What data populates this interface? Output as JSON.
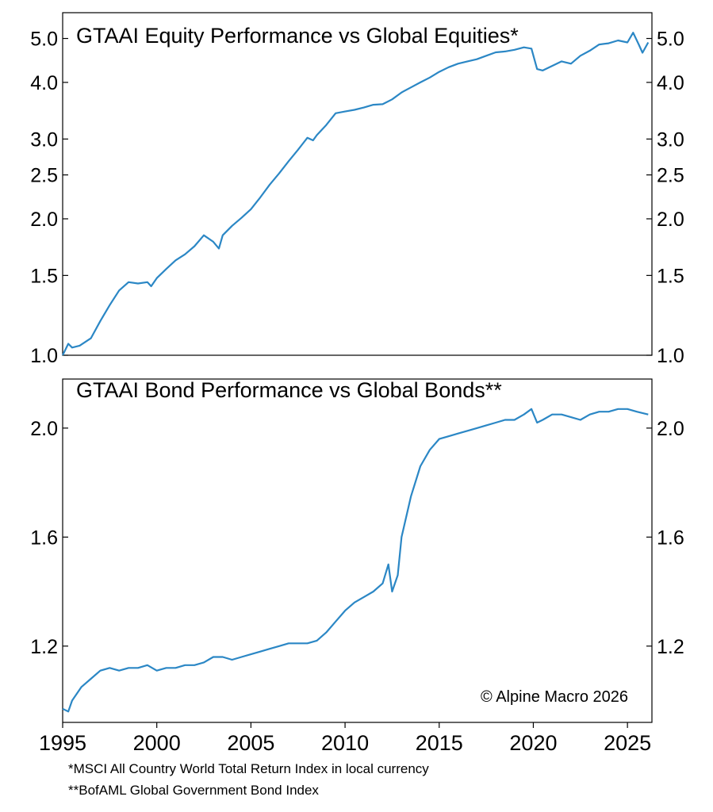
{
  "source": "© Alpine Macro 2026",
  "footnotes": [
    "*MSCI All Country World Total Return Index in local currency",
    "**BofAML Global Government Bond Index"
  ],
  "colors": {
    "line": "#2b87c5",
    "axis": "#000000",
    "background": "#ffffff"
  },
  "chart_data": [
    {
      "type": "line",
      "title": "GTAAI Equity Performance vs Global Equities*",
      "xlabel": "",
      "ylabel": "",
      "yscale": "log",
      "ylim": [
        1.0,
        5.7
      ],
      "xlim": [
        1995.0,
        2026.3
      ],
      "yticks": [
        1.0,
        1.5,
        2.0,
        2.5,
        3.0,
        4.0,
        5.0
      ],
      "ytick_labels": [
        "1.0",
        "1.5",
        "2.0",
        "2.5",
        "3.0",
        "4.0",
        "5.0"
      ],
      "tick_labels_both_sides": true,
      "grid": false,
      "series": [
        {
          "x": [
            1995.0,
            1995.3,
            1995.5,
            1995.9,
            1996.5,
            1997.0,
            1997.5,
            1998.0,
            1998.5,
            1999.0,
            1999.5,
            1999.7,
            2000.0,
            2000.5,
            2001.0,
            2001.5,
            2002.0,
            2002.5,
            2003.0,
            2003.3,
            2003.5,
            2004.0,
            2004.5,
            2005.0,
            2005.5,
            2006.0,
            2006.5,
            2007.0,
            2007.5,
            2008.0,
            2008.3,
            2008.5,
            2009.0,
            2009.5,
            2010.0,
            2010.5,
            2011.0,
            2011.5,
            2012.0,
            2012.5,
            2013.0,
            2013.5,
            2014.0,
            2014.5,
            2015.0,
            2015.5,
            2016.0,
            2016.5,
            2017.0,
            2017.5,
            2018.0,
            2018.5,
            2019.0,
            2019.5,
            2019.9,
            2020.2,
            2020.5,
            2021.0,
            2021.5,
            2022.0,
            2022.5,
            2023.0,
            2023.5,
            2024.0,
            2024.5,
            2025.0,
            2025.3,
            2025.6,
            2025.8,
            2026.1
          ],
          "values": [
            1.0,
            1.06,
            1.04,
            1.05,
            1.09,
            1.19,
            1.29,
            1.39,
            1.45,
            1.44,
            1.45,
            1.42,
            1.48,
            1.55,
            1.62,
            1.67,
            1.74,
            1.84,
            1.78,
            1.72,
            1.84,
            1.93,
            2.01,
            2.1,
            2.23,
            2.38,
            2.52,
            2.68,
            2.84,
            3.02,
            2.98,
            3.06,
            3.22,
            3.42,
            3.45,
            3.48,
            3.52,
            3.57,
            3.58,
            3.67,
            3.8,
            3.9,
            4.0,
            4.1,
            4.22,
            4.32,
            4.4,
            4.45,
            4.5,
            4.58,
            4.66,
            4.68,
            4.72,
            4.78,
            4.75,
            4.28,
            4.25,
            4.35,
            4.45,
            4.4,
            4.58,
            4.7,
            4.85,
            4.88,
            4.95,
            4.9,
            5.15,
            4.85,
            4.65,
            4.9
          ]
        }
      ]
    },
    {
      "type": "line",
      "title": "GTAAI Bond Performance vs Global Bonds**",
      "xlabel": "",
      "ylabel": "",
      "yscale": "linear",
      "ylim": [
        0.92,
        2.18
      ],
      "xlim": [
        1995.0,
        2026.3
      ],
      "yticks": [
        1.2,
        1.6,
        2.0
      ],
      "ytick_labels": [
        "1.2",
        "1.6",
        "2.0"
      ],
      "tick_labels_both_sides": true,
      "grid": false,
      "xticks": [
        1995,
        2000,
        2005,
        2010,
        2015,
        2020,
        2025
      ],
      "xtick_labels": [
        "1995",
        "2000",
        "2005",
        "2010",
        "2015",
        "2020",
        "2025"
      ],
      "series": [
        {
          "x": [
            1995.0,
            1995.3,
            1995.5,
            1996.0,
            1996.5,
            1997.0,
            1997.5,
            1998.0,
            1998.5,
            1999.0,
            1999.5,
            2000.0,
            2000.5,
            2001.0,
            2001.5,
            2002.0,
            2002.5,
            2003.0,
            2003.5,
            2004.0,
            2004.5,
            2005.0,
            2005.5,
            2006.0,
            2006.5,
            2007.0,
            2007.5,
            2008.0,
            2008.5,
            2009.0,
            2009.5,
            2010.0,
            2010.5,
            2011.0,
            2011.5,
            2012.0,
            2012.3,
            2012.5,
            2012.8,
            2013.0,
            2013.5,
            2014.0,
            2014.5,
            2015.0,
            2015.5,
            2016.0,
            2016.5,
            2017.0,
            2017.5,
            2018.0,
            2018.5,
            2019.0,
            2019.5,
            2019.9,
            2020.2,
            2020.5,
            2021.0,
            2021.5,
            2022.0,
            2022.5,
            2023.0,
            2023.5,
            2024.0,
            2024.5,
            2025.0,
            2025.5,
            2026.1
          ],
          "values": [
            0.97,
            0.96,
            1.0,
            1.05,
            1.08,
            1.11,
            1.12,
            1.11,
            1.12,
            1.12,
            1.13,
            1.11,
            1.12,
            1.12,
            1.13,
            1.13,
            1.14,
            1.16,
            1.16,
            1.15,
            1.16,
            1.17,
            1.18,
            1.19,
            1.2,
            1.21,
            1.21,
            1.21,
            1.22,
            1.25,
            1.29,
            1.33,
            1.36,
            1.38,
            1.4,
            1.43,
            1.5,
            1.4,
            1.46,
            1.6,
            1.75,
            1.86,
            1.92,
            1.96,
            1.97,
            1.98,
            1.99,
            2.0,
            2.01,
            2.02,
            2.03,
            2.03,
            2.05,
            2.07,
            2.02,
            2.03,
            2.05,
            2.05,
            2.04,
            2.03,
            2.05,
            2.06,
            2.06,
            2.07,
            2.07,
            2.06,
            2.05
          ]
        }
      ]
    }
  ]
}
